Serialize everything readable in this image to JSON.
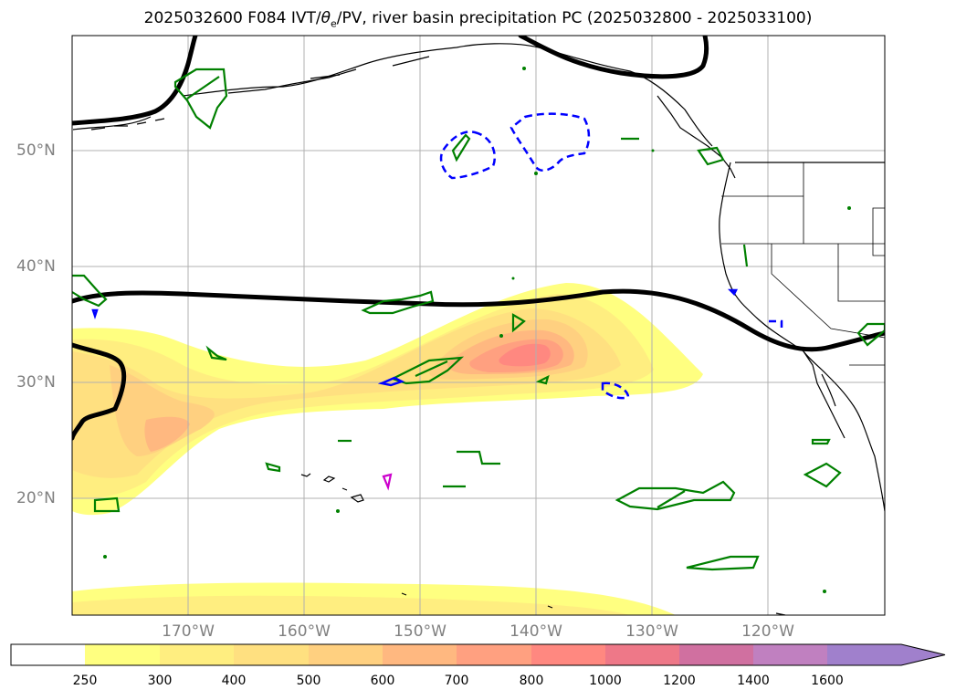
{
  "figure": {
    "title": "2025032600 F084 IVT/θe/PV, river basin precipitation PC (2025032800 - 2025033100)",
    "title_parts": {
      "prefix": "2025032600 F084 IVT/",
      "theta": "θ",
      "theta_sub": "e",
      "suffix": "/PV, river basin precipitation PC (2025032800 - 2025033100)"
    }
  },
  "map": {
    "lat_labels": [
      "50°N",
      "40°N",
      "30°N",
      "20°N"
    ],
    "lon_labels": [
      "170°W",
      "160°W",
      "150°W",
      "140°W",
      "130°W",
      "120°W"
    ],
    "colors": {
      "black_contour": "#000000",
      "green_contour": "#008000",
      "blue_dashed_contour": "#0000ff",
      "magenta_contour": "#cc00cc",
      "coastline": "#000000",
      "grid": "#b0b0b0"
    }
  },
  "colorbar": {
    "ticks": [
      "250",
      "300",
      "400",
      "500",
      "600",
      "700",
      "800",
      "1000",
      "1200",
      "1400",
      "1600"
    ],
    "colors": [
      "#ffffff",
      "#ffff80",
      "#ffee80",
      "#ffe080",
      "#ffd080",
      "#ffb880",
      "#ffa080",
      "#ff8880",
      "#ee7888",
      "#d070a0",
      "#c080c0",
      "#a080cc"
    ],
    "extend": "max"
  }
}
